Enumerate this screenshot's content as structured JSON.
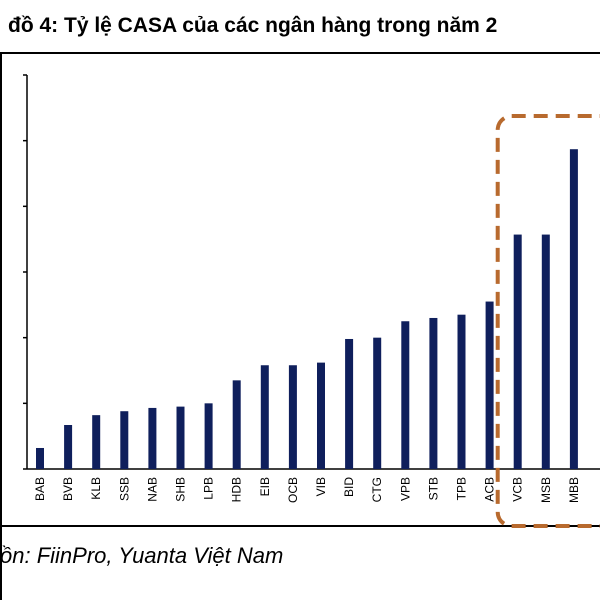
{
  "title": "đồ 4: Tỷ lệ CASA của các ngân hàng trong năm 2",
  "source": "ồn: FiinPro, Yuanta Việt Nam",
  "colors": {
    "bar": "#0f1f5c",
    "highlight": "#b86a2e",
    "axis": "#000000"
  },
  "chart_data": {
    "type": "bar",
    "title": "",
    "xlabel": "",
    "ylabel": "",
    "ylim": [
      0,
      6
    ],
    "grid": false,
    "categories": [
      "BAB",
      "BVB",
      "KLB",
      "SSB",
      "NAB",
      "SHB",
      "LPB",
      "HDB",
      "EIB",
      "OCB",
      "VIB",
      "BID",
      "CTG",
      "VPB",
      "STB",
      "TPB",
      "ACB",
      "VCB",
      "MSB",
      "MBB"
    ],
    "values": [
      0.32,
      0.67,
      0.82,
      0.88,
      0.93,
      0.95,
      1.0,
      1.35,
      1.58,
      1.58,
      1.62,
      1.98,
      2.0,
      2.25,
      2.3,
      2.35,
      2.55,
      3.57,
      3.57,
      4.87
    ],
    "highlighted": [
      "VCB",
      "MSB",
      "MBB"
    ]
  }
}
